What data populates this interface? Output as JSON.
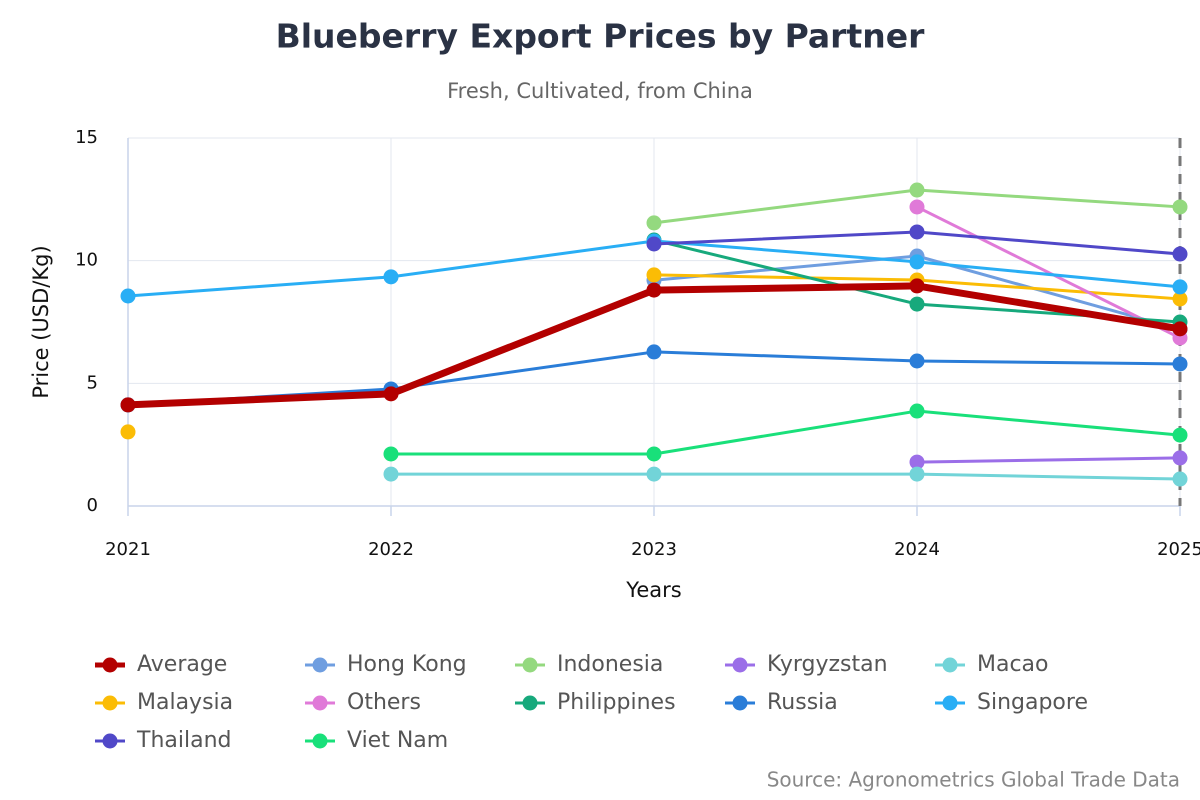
{
  "chart_data": {
    "type": "line",
    "title": "Blueberry Export Prices by Partner",
    "subtitle": "Fresh, Cultivated, from China",
    "x_label": "Years",
    "y_label": "Price (USD/Kg)",
    "source": "Source: Agronometrics Global Trade Data",
    "x": [
      2021,
      2022,
      2023,
      2024,
      2025
    ],
    "xlim": [
      2021,
      2025
    ],
    "xticks": [
      2021,
      2022,
      2023,
      2024,
      2025
    ],
    "ylim": [
      0,
      15
    ],
    "yticks": [
      0,
      5,
      10,
      15
    ],
    "grid": true,
    "series": [
      {
        "name": "Average",
        "color": "#b30000",
        "values": [
          4.12,
          4.57,
          8.8,
          8.97,
          7.22
        ]
      },
      {
        "name": "Hong Kong",
        "color": "#6f9ee0",
        "values": [
          null,
          null,
          9.2,
          10.19,
          7.2
        ]
      },
      {
        "name": "Indonesia",
        "color": "#94d97f",
        "values": [
          null,
          null,
          11.54,
          12.88,
          12.19
        ]
      },
      {
        "name": "Kyrgyzstan",
        "color": "#9b6ee8",
        "values": [
          null,
          null,
          null,
          1.79,
          1.96
        ]
      },
      {
        "name": "Macao",
        "color": "#72d4d8",
        "values": [
          null,
          1.3,
          1.3,
          1.3,
          1.1
        ]
      },
      {
        "name": "Malaysia",
        "color": "#fbbc05",
        "values": [
          3.02,
          null,
          9.42,
          9.21,
          8.44
        ]
      },
      {
        "name": "Others",
        "color": "#e07ad8",
        "values": [
          null,
          null,
          null,
          12.19,
          6.85
        ]
      },
      {
        "name": "Philippines",
        "color": "#17a97c",
        "values": [
          null,
          null,
          10.84,
          8.23,
          7.5
        ]
      },
      {
        "name": "Russia",
        "color": "#2a7dd8",
        "values": [
          4.12,
          4.77,
          6.28,
          5.91,
          5.79
        ]
      },
      {
        "name": "Singapore",
        "color": "#29aef5",
        "values": [
          8.56,
          9.34,
          10.8,
          9.95,
          8.93
        ]
      },
      {
        "name": "Thailand",
        "color": "#5048c8",
        "values": [
          null,
          null,
          10.68,
          11.17,
          10.27
        ]
      },
      {
        "name": "Viet Nam",
        "color": "#19e07a",
        "values": [
          null,
          2.12,
          2.12,
          3.87,
          2.89
        ]
      }
    ]
  }
}
